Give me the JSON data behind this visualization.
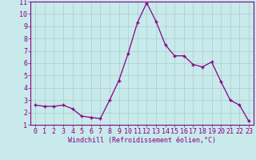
{
  "x": [
    0,
    1,
    2,
    3,
    4,
    5,
    6,
    7,
    8,
    9,
    10,
    11,
    12,
    13,
    14,
    15,
    16,
    17,
    18,
    19,
    20,
    21,
    22,
    23
  ],
  "y": [
    2.6,
    2.5,
    2.5,
    2.6,
    2.3,
    1.7,
    1.6,
    1.5,
    3.0,
    4.6,
    6.8,
    9.3,
    10.9,
    9.4,
    7.5,
    6.6,
    6.6,
    5.9,
    5.7,
    6.1,
    4.5,
    3.0,
    2.6,
    1.3
  ],
  "line_color": "#880088",
  "marker": "+",
  "marker_size": 3,
  "marker_lw": 1.0,
  "bg_color": "#c8eaea",
  "grid_color": "#a8cccc",
  "xlabel": "Windchill (Refroidissement éolien,°C)",
  "xlabel_fontsize": 6.0,
  "tick_fontsize": 6.0,
  "xlim": [
    -0.5,
    23.5
  ],
  "ylim": [
    1,
    11
  ],
  "yticks": [
    1,
    2,
    3,
    4,
    5,
    6,
    7,
    8,
    9,
    10,
    11
  ],
  "xticks": [
    0,
    1,
    2,
    3,
    4,
    5,
    6,
    7,
    8,
    9,
    10,
    11,
    12,
    13,
    14,
    15,
    16,
    17,
    18,
    19,
    20,
    21,
    22,
    23
  ],
  "spine_color": "#880088",
  "tick_color": "#880088",
  "label_color": "#880088",
  "line_width": 0.9
}
